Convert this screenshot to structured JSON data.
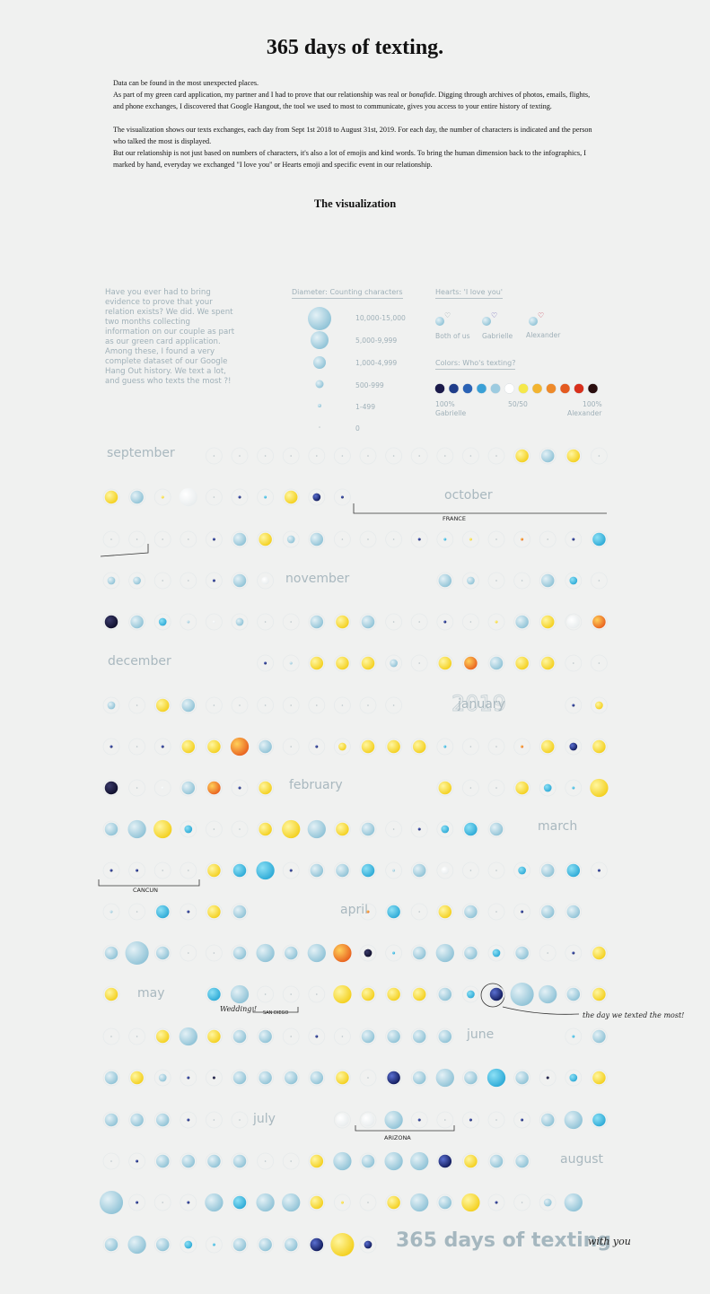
{
  "title": "365 days of texting.",
  "intro": {
    "p1": "Data can be found in the most unexpected places.",
    "p2a": "As part of my green card application, my partner and I had to prove that our relationship was real or ",
    "p2em": "bonafide",
    "p2b": ". Digging through archives of photos, emails, flights, and phone exchanges, I discovered that Google Hangout, the tool we used to most to communicate, gives you access to your entire history of texting.",
    "p3": "The visualization shows our texts exchanges, each day from Sept 1st 2018 to August 31st, 2019. For each day, the number of characters is indicated and the person who talked the most is displayed.",
    "p4": "But our relationship is not just based on numbers of characters, it's also a lot of emojis and kind words. To bring the human dimension back to the infographics, I marked by hand, everyday we exchanged \"I love you\" or Hearts emoji and specific event in our relationship."
  },
  "subtitle": "The visualization",
  "note": "Have you ever had to bring evidence to prove that your relation exists? We did. We spent two months collecting information on our couple as part as our green card application. Among these, I found a very complete dataset of our Google Hang Out history. We text a lot, and guess who texts the most ?!",
  "legend": {
    "diameter_title": "Diameter: Counting characters",
    "sizes": [
      "10,000-15,000",
      "5,000-9,999",
      "1,000-4,999",
      "500-999",
      "1-499",
      "0"
    ],
    "hearts_title": "Hearts: 'I love you'",
    "hearts": [
      "Both of us",
      "Gabrielle",
      "Alexander"
    ],
    "colors_title": "Colors: Who's texting?",
    "color_scale": [
      "#1b1a4a",
      "#1f3d8a",
      "#2a62b5",
      "#3aa0d6",
      "#9ccbe0",
      "#ffffff",
      "#f5e84a",
      "#f2b430",
      "#ee8a2a",
      "#e45a20",
      "#d8301c",
      "#2a0e0e"
    ],
    "left_pct": "100%",
    "left_name": "Gabrielle",
    "mid": "50/50",
    "right_pct": "100%",
    "right_name": "Alexander"
  },
  "months": [
    "september",
    "october",
    "november",
    "december",
    "january",
    "february",
    "march",
    "april",
    "may",
    "june",
    "july",
    "august"
  ],
  "big_label": "2019",
  "annotations": {
    "france": "FRANCE",
    "cancun": "CANCUN",
    "wedding": "Wedding !",
    "san_diego": "SAN DIEGO",
    "arizona": "ARIZONA",
    "most": "the day we texted the most!"
  },
  "footer": {
    "title": "365 days of texting",
    "sub": "with you"
  },
  "colors": {
    "bg": "#f0f1f0",
    "month": "#a9b8bf",
    "heart_both": "#9aa6ac",
    "heart_g": "#5a4fb0",
    "heart_a": "#c0304a"
  }
}
